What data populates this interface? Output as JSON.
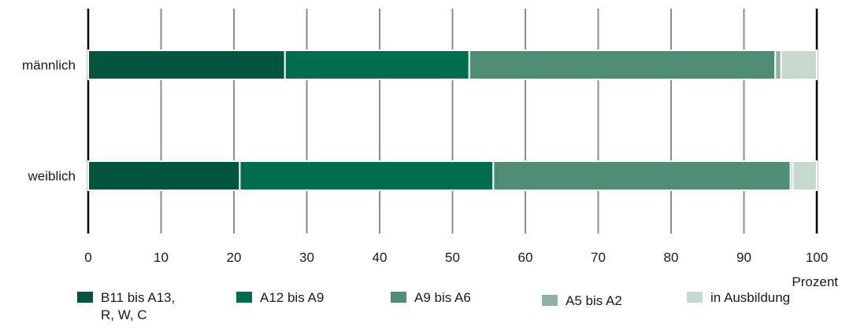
{
  "chart_data": {
    "type": "bar",
    "orientation": "horizontal",
    "stacked": true,
    "categories": [
      "männlich",
      "weiblich"
    ],
    "series": [
      {
        "name": "B11 bis A13,\nR, W, C",
        "color": "#04553f",
        "values": [
          27.0,
          20.8
        ]
      },
      {
        "name": "A12 bis A9",
        "color": "#006e4e",
        "values": [
          25.3,
          34.8
        ]
      },
      {
        "name": "A9 bis A6",
        "color": "#4f8e74",
        "values": [
          42.0,
          40.8
        ]
      },
      {
        "name": "A5 bis A2",
        "color": "#8db39f",
        "values": [
          0.8,
          0.3
        ]
      },
      {
        "name": "in Ausbildung",
        "color": "#c5dacd",
        "values": [
          4.9,
          3.3
        ]
      }
    ],
    "xlim": [
      0,
      100
    ],
    "xticks": [
      0,
      10,
      20,
      30,
      40,
      50,
      60,
      70,
      80,
      90,
      100
    ],
    "xlabel": "Prozent",
    "grid": true,
    "legend_position": "bottom"
  }
}
